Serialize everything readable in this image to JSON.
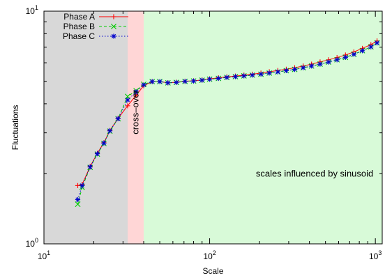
{
  "chart_data": {
    "type": "line",
    "xlabel": "Scale",
    "ylabel": "Fluctuations",
    "x_scale": "log",
    "y_scale": "log",
    "xlim": [
      10,
      1100
    ],
    "ylim": [
      1,
      10
    ],
    "x_ticks": [
      {
        "value": 10,
        "base": "10",
        "exp": "1"
      },
      {
        "value": 100,
        "base": "10",
        "exp": "2"
      },
      {
        "value": 1000,
        "base": "10",
        "exp": "3"
      }
    ],
    "y_ticks": [
      {
        "value": 1,
        "base": "10",
        "exp": "0"
      },
      {
        "value": 10,
        "base": "10",
        "exp": "1"
      }
    ],
    "regions": [
      {
        "x_from": 10,
        "x_to": 32,
        "color": "#d8d8d8",
        "label": ""
      },
      {
        "x_from": 32,
        "x_to": 40,
        "color": "#ffd6d6",
        "label": "cross–over",
        "label_orientation": "vertical"
      },
      {
        "x_from": 40,
        "x_to": 1100,
        "color": "#d8fad8",
        "label": "scales influenced by sinusoid",
        "label_at": {
          "x": 430,
          "y": 2.0
        }
      }
    ],
    "legend_position": "top-left",
    "series": [
      {
        "name": "Phase A",
        "color": "#ff0000",
        "marker": "plus",
        "dash": "solid",
        "x": [
          16,
          17,
          19,
          21,
          23,
          25,
          28,
          32,
          36,
          40,
          45,
          50,
          56,
          63,
          71,
          80,
          90,
          100,
          113,
          127,
          143,
          161,
          181,
          204,
          229,
          258,
          290,
          326,
          367,
          412,
          464,
          522,
          587,
          660,
          742,
          835,
          940,
          1024
        ],
        "y": [
          1.78,
          1.8,
          2.15,
          2.45,
          2.72,
          3.07,
          3.46,
          3.92,
          4.35,
          4.78,
          4.98,
          4.98,
          4.92,
          4.95,
          5.0,
          5.02,
          5.06,
          5.12,
          5.17,
          5.22,
          5.26,
          5.31,
          5.36,
          5.42,
          5.49,
          5.56,
          5.63,
          5.71,
          5.81,
          5.92,
          6.05,
          6.18,
          6.32,
          6.48,
          6.68,
          6.92,
          7.18,
          7.45
        ]
      },
      {
        "name": "Phase B",
        "color": "#00cc00",
        "marker": "cross",
        "dash": "dashed",
        "x": [
          16,
          17,
          19,
          21,
          23,
          25,
          28,
          32,
          36,
          40,
          45,
          50,
          56,
          63,
          71,
          80,
          90,
          100,
          113,
          127,
          143,
          161,
          181,
          204,
          229,
          258,
          290,
          326,
          367,
          412,
          464,
          522,
          587,
          660,
          742,
          835,
          940,
          1024
        ],
        "y": [
          1.48,
          1.75,
          2.13,
          2.43,
          2.7,
          3.05,
          3.45,
          4.3,
          4.55,
          4.85,
          4.98,
          4.98,
          4.92,
          4.94,
          4.99,
          5.01,
          5.05,
          5.1,
          5.14,
          5.19,
          5.23,
          5.27,
          5.31,
          5.36,
          5.42,
          5.48,
          5.55,
          5.62,
          5.71,
          5.81,
          5.92,
          6.04,
          6.18,
          6.33,
          6.52,
          6.76,
          7.02,
          7.3
        ]
      },
      {
        "name": "Phase C",
        "color": "#0000cc",
        "marker": "star",
        "dash": "dotted",
        "x": [
          16,
          17,
          19,
          21,
          23,
          25,
          28,
          32,
          36,
          40,
          45,
          50,
          56,
          63,
          71,
          80,
          90,
          100,
          113,
          127,
          143,
          161,
          181,
          204,
          229,
          258,
          290,
          326,
          367,
          412,
          464,
          522,
          587,
          660,
          742,
          835,
          940,
          1024
        ],
        "y": [
          1.55,
          1.78,
          2.14,
          2.44,
          2.71,
          3.06,
          3.45,
          4.15,
          4.5,
          4.82,
          4.98,
          4.98,
          4.92,
          4.94,
          4.99,
          5.01,
          5.05,
          5.1,
          5.14,
          5.19,
          5.23,
          5.27,
          5.31,
          5.36,
          5.42,
          5.48,
          5.55,
          5.62,
          5.71,
          5.81,
          5.92,
          6.04,
          6.18,
          6.33,
          6.52,
          6.76,
          7.02,
          7.3
        ]
      }
    ]
  }
}
